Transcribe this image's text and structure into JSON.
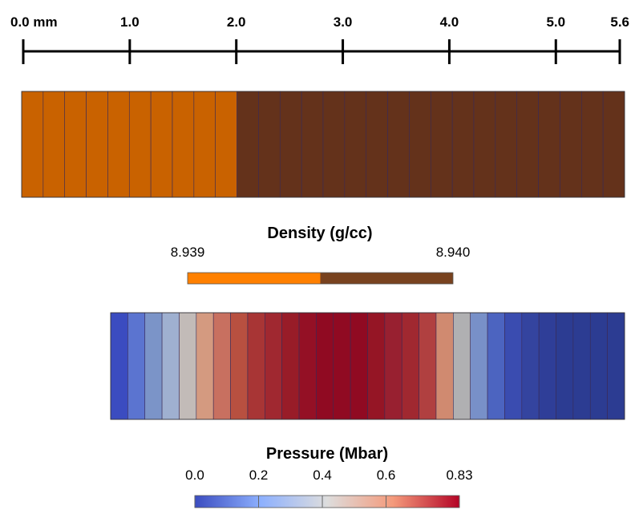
{
  "ruler": {
    "unit_label": "0.0 mm",
    "ticks": [
      {
        "value": 0.0,
        "label": "0.0 mm"
      },
      {
        "value": 1.0,
        "label": "1.0"
      },
      {
        "value": 2.0,
        "label": "2.0"
      },
      {
        "value": 3.0,
        "label": "3.0"
      },
      {
        "value": 4.0,
        "label": "4.0"
      },
      {
        "value": 5.0,
        "label": "5.0"
      },
      {
        "value": 5.6,
        "label": "5.6"
      }
    ],
    "min": 0.0,
    "max": 5.6
  },
  "density_bar": {
    "cells": [
      "#c96200",
      "#c96200",
      "#c96200",
      "#c96200",
      "#c96200",
      "#c96200",
      "#c96200",
      "#c96200",
      "#c96200",
      "#c96200",
      "#64321b",
      "#64321b",
      "#64321b",
      "#64321b",
      "#64321b",
      "#64321b",
      "#64321b",
      "#64321b",
      "#64321b",
      "#64321b",
      "#64321b",
      "#64321b",
      "#64321b",
      "#64321b",
      "#64321b",
      "#64321b",
      "#64321b",
      "#64321b"
    ]
  },
  "density_legend": {
    "title": "Density (g/cc)",
    "min_label": "8.939",
    "max_label": "8.940",
    "colors": [
      "#ff8000",
      "#78421f"
    ]
  },
  "pressure_bar": {
    "cells": [
      "#3b4cc0",
      "#5b74d0",
      "#7b94c8",
      "#9fb0d0",
      "#c2bbb8",
      "#d49a80",
      "#c87060",
      "#b85040",
      "#a83535",
      "#a02830",
      "#981c28",
      "#941025",
      "#900a22",
      "#900a22",
      "#900a22",
      "#951525",
      "#982030",
      "#a02830",
      "#b04040",
      "#d08a70",
      "#b0b0b2",
      "#7890c8",
      "#4c64c0",
      "#3a4cb0",
      "#34449f",
      "#2f3e98",
      "#2c3c92",
      "#2c3c92",
      "#2c3c92",
      "#2c3c92"
    ]
  },
  "pressure_legend": {
    "title": "Pressure (Mbar)",
    "ticks": [
      {
        "value": 0.0,
        "label": "0.0"
      },
      {
        "value": 0.2,
        "label": "0.2"
      },
      {
        "value": 0.4,
        "label": "0.4"
      },
      {
        "value": 0.6,
        "label": "0.6"
      },
      {
        "value": 0.83,
        "label": "0.83"
      }
    ],
    "min": 0.0,
    "max": 0.83,
    "colormap": [
      "#3b4cc0",
      "#8db0fe",
      "#dddddd",
      "#f49a7b",
      "#b40426"
    ]
  }
}
